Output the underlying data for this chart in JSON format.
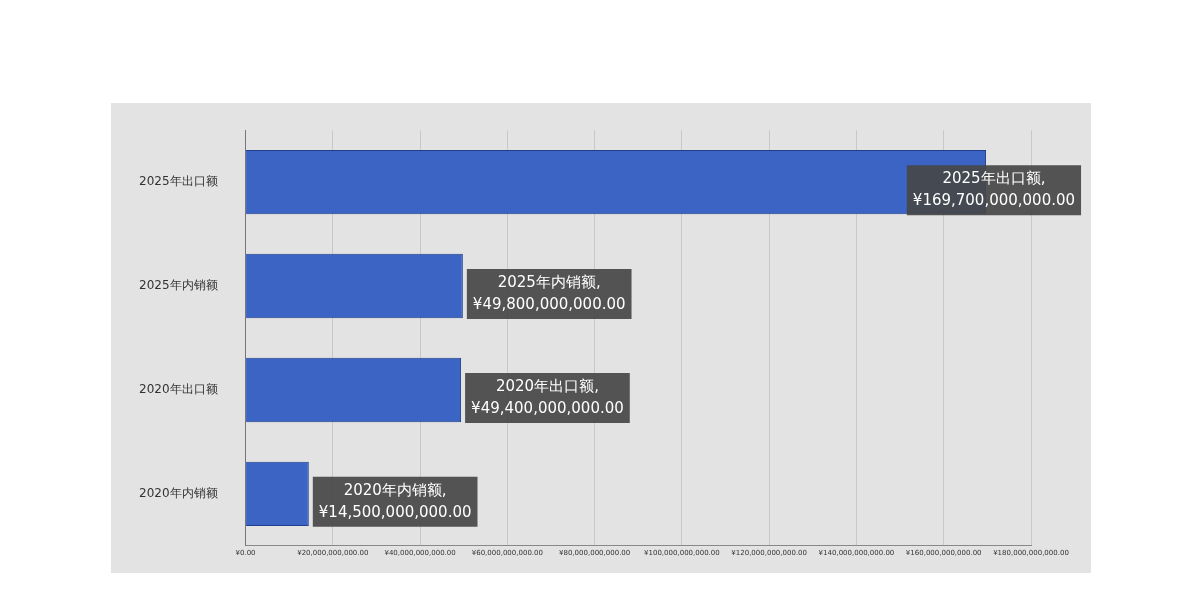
{
  "chart_data": {
    "type": "bar",
    "orientation": "horizontal",
    "categories": [
      "2025年出口额",
      "2025年内销额",
      "2020年出口额",
      "2020年内销额"
    ],
    "values": [
      169700000000,
      49800000000,
      49400000000,
      14500000000
    ],
    "color": "#3b64c4",
    "value_labels": [
      "2025年出口额, ¥169,700,000,000.00",
      "2025年内销额, ¥49,800,000,000.00",
      "2020年出口额, ¥49,400,000,000.00",
      "2020年内销额, ¥14,500,000,000.00"
    ],
    "xlim": [
      0,
      180000000000
    ],
    "xticks": [
      {
        "value": 0,
        "label": "¥0.00"
      },
      {
        "value": 20000000000,
        "label": "¥20,000,000,000.00"
      },
      {
        "value": 40000000000,
        "label": "¥40,000,000,000.00"
      },
      {
        "value": 60000000000,
        "label": "¥60,000,000,000.00"
      },
      {
        "value": 80000000000,
        "label": "¥80,000,000,000.00"
      },
      {
        "value": 100000000000,
        "label": "¥100,000,000,000.00"
      },
      {
        "value": 120000000000,
        "label": "¥120,000,000,000.00"
      },
      {
        "value": 140000000000,
        "label": "¥140,000,000,000.00"
      },
      {
        "value": 160000000000,
        "label": "¥160,000,000,000.00"
      },
      {
        "value": 180000000000,
        "label": "¥180,000,000,000.00"
      }
    ],
    "grid": "x"
  }
}
